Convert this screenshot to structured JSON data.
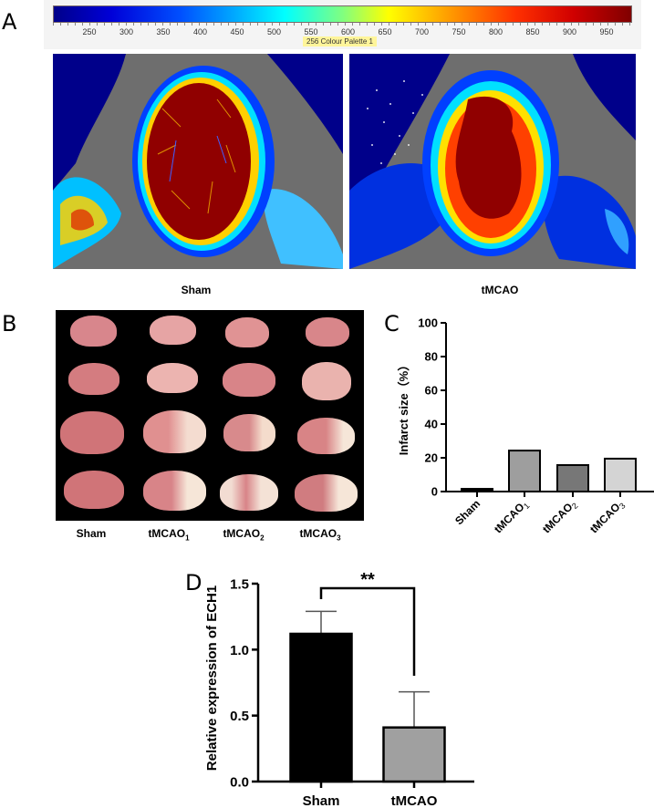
{
  "panel_letters": {
    "a": "A",
    "b": "B",
    "c": "C",
    "d": "D"
  },
  "panel_a": {
    "colorbar": {
      "ticks": [
        "250",
        "300",
        "350",
        "400",
        "450",
        "500",
        "550",
        "600",
        "650",
        "700",
        "750",
        "800",
        "850",
        "900",
        "950"
      ],
      "caption": "256 Colour Palette 1",
      "colors": [
        "#00008a",
        "#0000d8",
        "#0050ff",
        "#00b0ff",
        "#00ffff",
        "#80ff80",
        "#ffff00",
        "#ffa000",
        "#ff3000",
        "#d00000",
        "#800000"
      ]
    },
    "images": [
      {
        "label": "Sham",
        "description": "laser speckle perfusion heatmap, high flow in central hemisphere"
      },
      {
        "label": "tMCAO",
        "description": "laser speckle perfusion heatmap, reduced flow in lateral regions"
      }
    ],
    "background_color": "#6e6e6e"
  },
  "panel_b": {
    "description": "TTC-stained coronal brain slices, 4 rows x 4 columns",
    "columns": [
      {
        "label": "Sham",
        "sub": ""
      },
      {
        "label": "tMCAO",
        "sub": "1"
      },
      {
        "label": "tMCAO",
        "sub": "2"
      },
      {
        "label": "tMCAO",
        "sub": "3"
      }
    ]
  },
  "chart_data": [
    {
      "id": "C",
      "type": "bar",
      "title": "",
      "xlabel": "",
      "ylabel": "Infarct size（%）",
      "categories": [
        "Sham",
        "tMCAO1",
        "tMCAO2",
        "tMCAO3"
      ],
      "category_display": [
        {
          "main": "Sham",
          "sub": ""
        },
        {
          "main": "tMCAO",
          "sub": "1"
        },
        {
          "main": "tMCAO",
          "sub": "2"
        },
        {
          "main": "tMCAO",
          "sub": "3"
        }
      ],
      "values": [
        1.6,
        24.3,
        15.7,
        19.5
      ],
      "bar_colors": [
        "#000000",
        "#9e9e9e",
        "#777777",
        "#d4d4d4"
      ],
      "ylim": [
        0,
        100
      ],
      "yticks": [
        "0",
        "20",
        "40",
        "60",
        "80",
        "100"
      ],
      "grid": false,
      "legend": "none",
      "xtick_rotation": -45
    },
    {
      "id": "D",
      "type": "bar",
      "title": "",
      "xlabel": "",
      "ylabel": "Relative expression of ECH1",
      "categories": [
        "Sham",
        "tMCAO"
      ],
      "values": [
        1.12,
        0.41
      ],
      "error_upper": [
        1.29,
        0.68
      ],
      "bar_colors": [
        "#000000",
        "#a0a0a0"
      ],
      "ylim": [
        0,
        1.5
      ],
      "yticks": [
        "0.0",
        "0.5",
        "1.0",
        "1.5"
      ],
      "significance": {
        "between": [
          "Sham",
          "tMCAO"
        ],
        "label": "**"
      },
      "grid": false,
      "legend": "none"
    }
  ]
}
